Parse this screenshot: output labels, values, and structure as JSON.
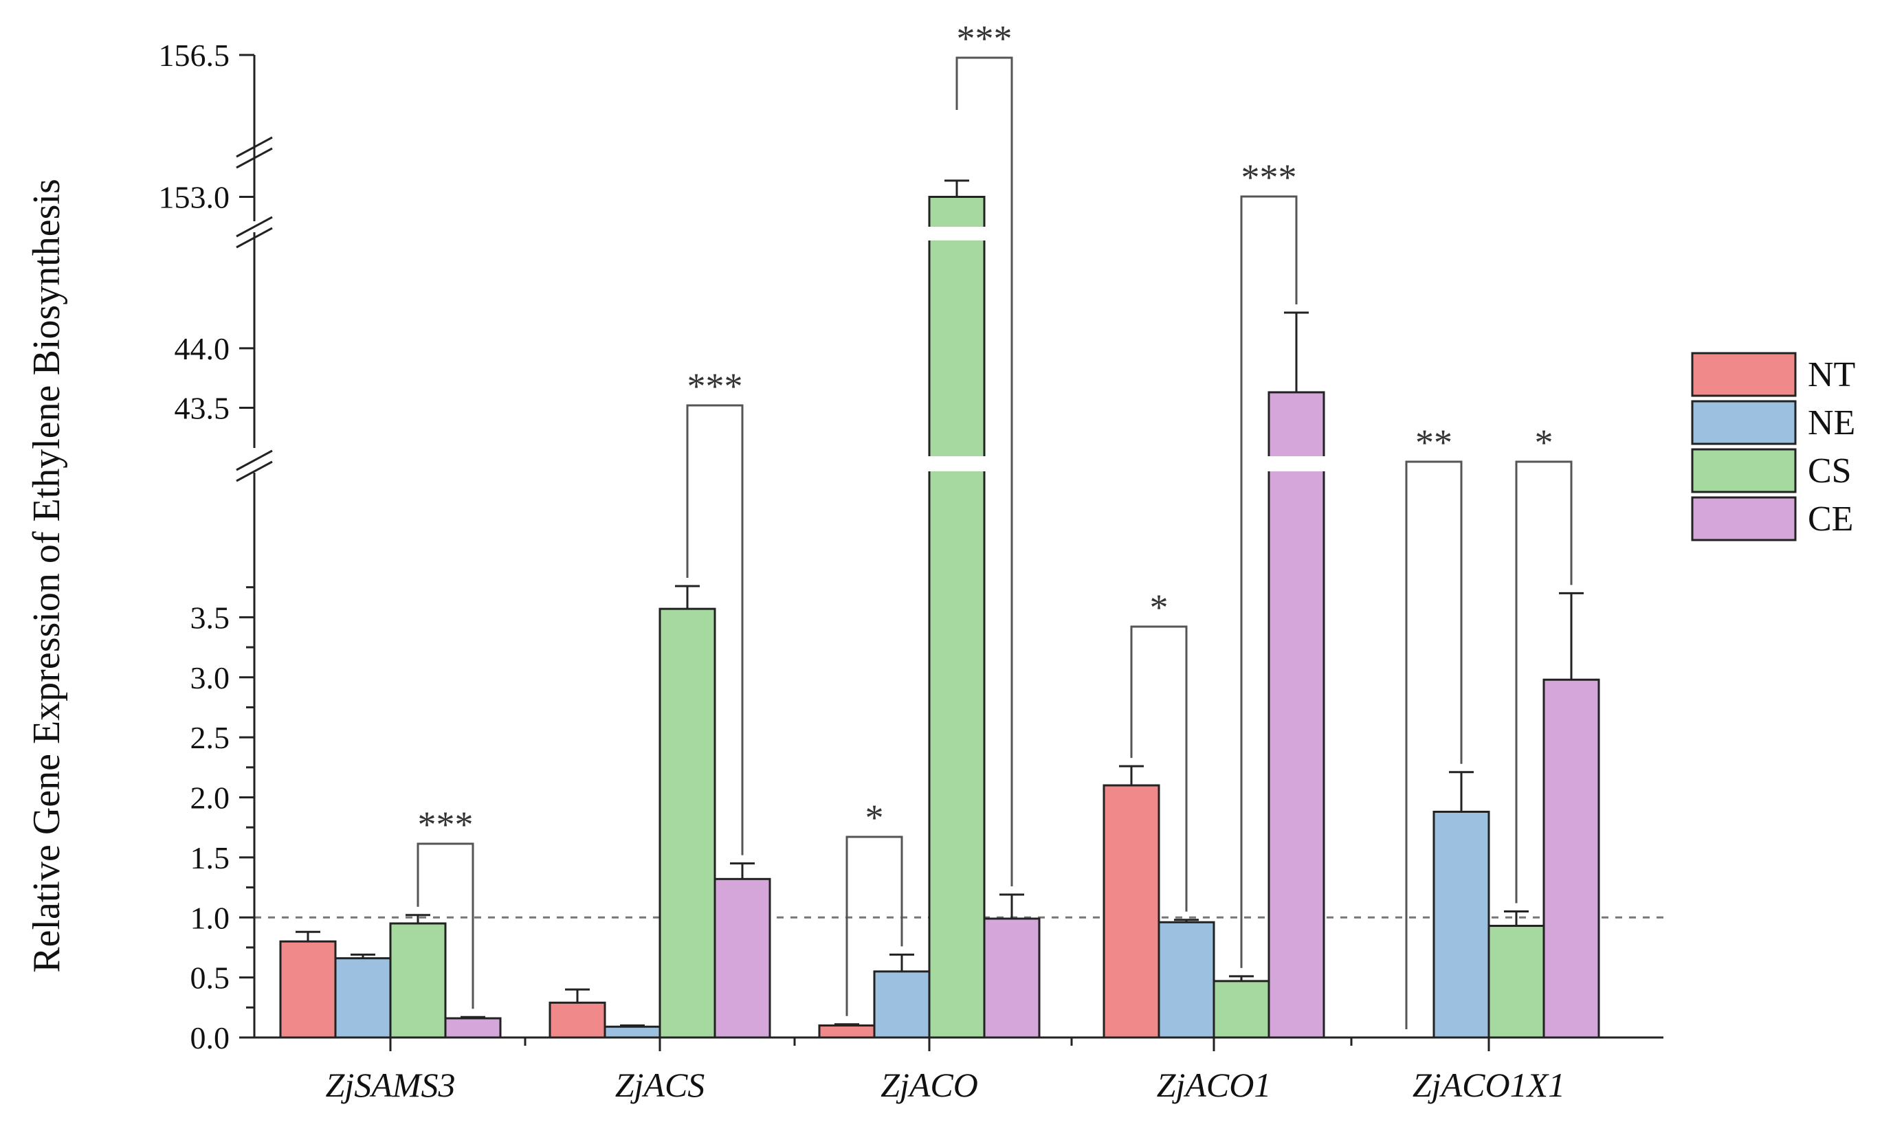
{
  "chart_data": {
    "type": "bar",
    "title": "",
    "xlabel": "",
    "ylabel": "Relative Gene Expression of Ethylene Biosynthesis",
    "categories": [
      "ZjSAMS3",
      "ZjACS",
      "ZjACO",
      "ZjACO1",
      "ZjACO1X1"
    ],
    "series": [
      {
        "name": "NT",
        "color": "#f08a8a",
        "values": [
          0.8,
          0.29,
          0.1,
          2.1,
          0.0
        ],
        "errors": [
          0.08,
          0.11,
          0.01,
          0.16,
          0.0
        ]
      },
      {
        "name": "NE",
        "color": "#9cc0e0",
        "values": [
          0.66,
          0.09,
          0.55,
          0.96,
          1.88
        ],
        "errors": [
          0.03,
          0.01,
          0.14,
          0.02,
          0.33
        ]
      },
      {
        "name": "CS",
        "color": "#a6d9a0",
        "values": [
          0.95,
          3.57,
          153.0,
          0.47,
          0.93
        ],
        "errors": [
          0.07,
          0.19,
          0.4,
          0.04,
          0.12
        ]
      },
      {
        "name": "CE",
        "color": "#d4a6d9",
        "values": [
          0.16,
          1.32,
          0.99,
          43.63,
          2.98
        ],
        "errors": [
          0.01,
          0.13,
          0.2,
          0.67,
          0.72
        ]
      }
    ],
    "y_segments": [
      {
        "range": [
          0.0,
          4.0
        ],
        "ticks": [
          "0.0",
          "0.5",
          "1.0",
          "1.5",
          "2.0",
          "2.5",
          "3.0",
          "3.5"
        ]
      },
      {
        "range": [
          43.0,
          44.45
        ],
        "ticks": [
          "43.5",
          "44.0"
        ]
      },
      {
        "range": [
          152.5,
          156.5
        ],
        "ticks": [
          "153.0",
          "156.5"
        ]
      }
    ],
    "axis_break": true,
    "reference_line": 1.0,
    "legend": {
      "position": "right",
      "entries": [
        "NT",
        "NE",
        "CS",
        "CE"
      ]
    },
    "significance": [
      {
        "category": 0,
        "from": "CS",
        "to": "CE",
        "label": "***"
      },
      {
        "category": 1,
        "from": "CS",
        "to": "CE",
        "label": "***"
      },
      {
        "category": 2,
        "from": "NT",
        "to": "NE",
        "label": "*"
      },
      {
        "category": 2,
        "from": "CS",
        "to": "CE",
        "label": "***"
      },
      {
        "category": 3,
        "from": "NT",
        "to": "NE",
        "label": "*"
      },
      {
        "category": 3,
        "from": "CS",
        "to": "CE",
        "label": "***"
      },
      {
        "category": 4,
        "from": "NT",
        "to": "NE",
        "label": "**"
      },
      {
        "category": 4,
        "from": "CS",
        "to": "CE",
        "label": "*"
      }
    ]
  }
}
